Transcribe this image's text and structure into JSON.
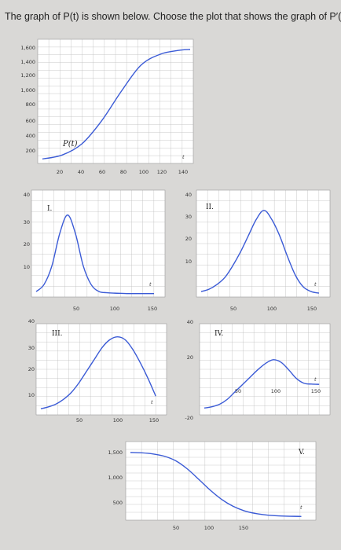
{
  "question": "The graph of P(t) is shown below. Choose the plot that shows the graph of P′(t).",
  "colors": {
    "curve": "#3b5bd6",
    "grid": "#bdbdbd",
    "panel": "#ffffff",
    "page": "#d9d8d6"
  },
  "chart_data": [
    {
      "id": "main",
      "type": "line",
      "series": [
        {
          "name": "P(t)",
          "x": [
            0,
            20,
            40,
            60,
            80,
            100,
            120,
            140,
            150
          ],
          "y": [
            20,
            80,
            250,
            600,
            1050,
            1450,
            1620,
            1680,
            1690
          ]
        }
      ],
      "xticks": [
        "20",
        "40",
        "60",
        "80",
        "100",
        "120",
        "140"
      ],
      "yticks": [
        "1,600",
        "1,400",
        "1,200",
        "1,000",
        "800",
        "600",
        "400",
        "200"
      ],
      "xlabel": "t",
      "curve_label": "P(t)",
      "xlim": [
        0,
        150
      ],
      "ylim": [
        0,
        1750
      ]
    },
    {
      "id": "I",
      "label": "I.",
      "type": "line",
      "x": [
        0,
        10,
        20,
        30,
        40,
        50,
        60,
        70,
        80,
        90,
        100,
        110,
        120,
        130,
        140,
        150
      ],
      "y": [
        1,
        4,
        12,
        26,
        34,
        26,
        12,
        4,
        1,
        0.5,
        0.3,
        0.2,
        0.1,
        0.1,
        0.1,
        0.1
      ],
      "xticks": [
        "50",
        "100",
        "150"
      ],
      "yticks": [
        "40",
        "30",
        "20",
        "10"
      ],
      "xlabel": "t",
      "xlim": [
        0,
        160
      ],
      "ylim": [
        0,
        42
      ]
    },
    {
      "id": "II",
      "label": "II.",
      "type": "line",
      "x": [
        0,
        10,
        20,
        30,
        40,
        50,
        60,
        70,
        80,
        90,
        100,
        110,
        120,
        130,
        140,
        150
      ],
      "y": [
        1,
        2,
        4,
        7,
        12,
        18,
        25,
        32,
        36,
        32,
        25,
        16,
        8,
        3,
        1,
        0.3
      ],
      "xticks": [
        "50",
        "100",
        "150"
      ],
      "yticks": [
        "40",
        "30",
        "20",
        "10"
      ],
      "xlabel": "t",
      "xlim": [
        0,
        160
      ],
      "ylim": [
        0,
        42
      ]
    },
    {
      "id": "III",
      "label": "III.",
      "type": "line",
      "x": [
        0,
        10,
        20,
        30,
        40,
        50,
        60,
        70,
        80,
        90,
        100,
        110,
        120,
        130,
        140,
        150
      ],
      "y": [
        1.5,
        2.5,
        4,
        6.5,
        10,
        15,
        21,
        27,
        33,
        37,
        38.5,
        37,
        32,
        25,
        17,
        8
      ],
      "xticks": [
        "50",
        "100",
        "150"
      ],
      "yticks": [
        "40",
        "30",
        "20",
        "10"
      ],
      "xlabel": "t",
      "xlim": [
        0,
        160
      ],
      "ylim": [
        0,
        42
      ]
    },
    {
      "id": "IV",
      "label": "IV.",
      "type": "line",
      "x": [
        0,
        10,
        20,
        30,
        40,
        50,
        60,
        70,
        80,
        90,
        100,
        110,
        120,
        130,
        140,
        150
      ],
      "y": [
        -19,
        -18,
        -16,
        -12,
        -6,
        0,
        6,
        12,
        17,
        20,
        18,
        12,
        5,
        1,
        0.3,
        0.1
      ],
      "xticks": [
        "50",
        "100",
        "150"
      ],
      "yticks": [
        "40",
        "20",
        "-20"
      ],
      "xlabel": "t",
      "xlim": [
        0,
        160
      ],
      "ylim": [
        -22,
        44
      ]
    },
    {
      "id": "V",
      "label": "V.",
      "type": "line",
      "x": [
        0,
        10,
        20,
        30,
        40,
        50,
        60,
        70,
        80,
        90,
        100,
        110,
        120,
        130,
        140,
        150
      ],
      "y": [
        1680,
        1670,
        1640,
        1580,
        1460,
        1250,
        980,
        700,
        460,
        280,
        160,
        90,
        50,
        30,
        20,
        15
      ],
      "xticks": [
        "50",
        "100",
        "150"
      ],
      "yticks": [
        "1,500",
        "1,000",
        "500"
      ],
      "xlabel": "t",
      "xlim": [
        0,
        160
      ],
      "ylim": [
        0,
        1800
      ]
    }
  ]
}
